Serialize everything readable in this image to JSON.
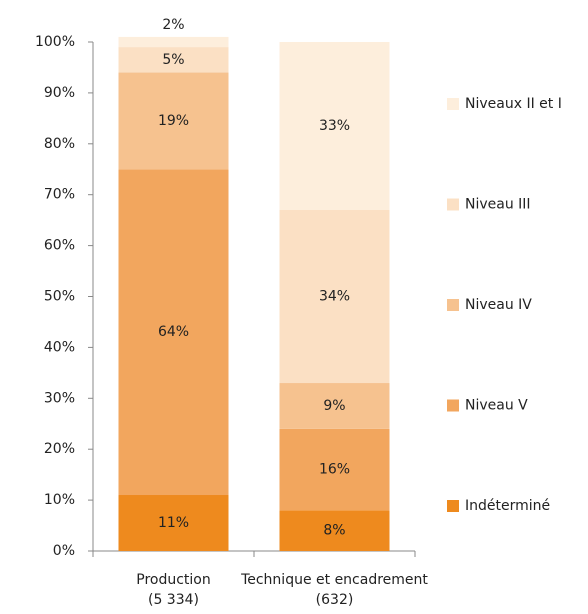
{
  "chart_data": {
    "type": "stacked_bar",
    "categories": [
      [
        "Production",
        "(5 334)"
      ],
      [
        "Technique et encadrement",
        "(632)"
      ]
    ],
    "series": [
      {
        "name": "Indéterminé",
        "color": "#ee8a1e",
        "values": [
          11,
          8
        ],
        "value_labels": [
          "11%",
          "8%"
        ]
      },
      {
        "name": "Niveau V",
        "color": "#f2a65e",
        "values": [
          64,
          16
        ],
        "value_labels": [
          "64%",
          "16%"
        ]
      },
      {
        "name": "Niveau IV",
        "color": "#f6c28f",
        "values": [
          19,
          9
        ],
        "value_labels": [
          "19%",
          "9%"
        ]
      },
      {
        "name": "Niveau III",
        "color": "#fbe0c4",
        "values": [
          5,
          34
        ],
        "value_labels": [
          "5%",
          "34%"
        ]
      },
      {
        "name": "Niveaux II et I",
        "color": "#fdeedc",
        "values": [
          2,
          33
        ],
        "value_labels": [
          "2%",
          "33%"
        ]
      }
    ],
    "ylim": [
      0,
      100
    ],
    "yticks": [
      {
        "value": 0,
        "label": "0%"
      },
      {
        "value": 10,
        "label": "10%"
      },
      {
        "value": 20,
        "label": "20%"
      },
      {
        "value": 30,
        "label": "30%"
      },
      {
        "value": 40,
        "label": "40%"
      },
      {
        "value": 50,
        "label": "50%"
      },
      {
        "value": 60,
        "label": "60%"
      },
      {
        "value": 70,
        "label": "70%"
      },
      {
        "value": 80,
        "label": "80%"
      },
      {
        "value": 90,
        "label": "90%"
      },
      {
        "value": 100,
        "label": "100%"
      }
    ],
    "legend": "right"
  }
}
